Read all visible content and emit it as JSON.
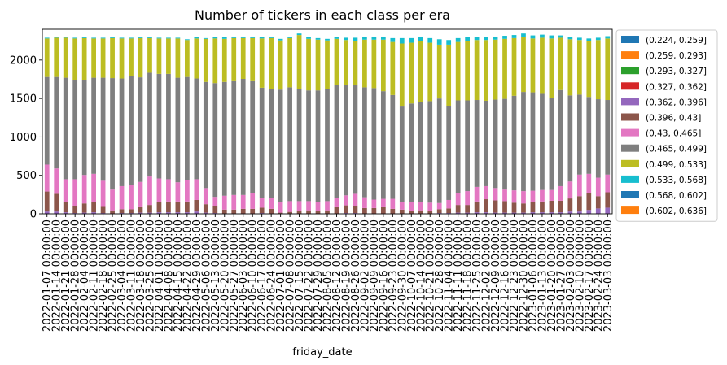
{
  "chart_data": {
    "type": "bar",
    "stacked": true,
    "title": "Number of tickers in each class per era",
    "xlabel": "friday_date",
    "ylabel": "",
    "ylim": [
      0,
      2400
    ],
    "yticks": [
      0,
      500,
      1000,
      1500,
      2000
    ],
    "grid": false,
    "legend_position": "outside-right",
    "categories": [
      "2022-01-07 00:00:00",
      "2022-01-14 00:00:00",
      "2022-01-21 00:00:00",
      "2022-01-28 00:00:00",
      "2022-02-04 00:00:00",
      "2022-02-11 00:00:00",
      "2022-02-18 00:00:00",
      "2022-02-25 00:00:00",
      "2022-03-04 00:00:00",
      "2022-03-11 00:00:00",
      "2022-03-18 00:00:00",
      "2022-03-25 00:00:00",
      "2022-04-01 00:00:00",
      "2022-04-08 00:00:00",
      "2022-04-15 00:00:00",
      "2022-04-22 00:00:00",
      "2022-04-29 00:00:00",
      "2022-05-06 00:00:00",
      "2022-05-13 00:00:00",
      "2022-05-20 00:00:00",
      "2022-05-27 00:00:00",
      "2022-06-03 00:00:00",
      "2022-06-10 00:00:00",
      "2022-06-17 00:00:00",
      "2022-06-24 00:00:00",
      "2022-07-01 00:00:00",
      "2022-07-08 00:00:00",
      "2022-07-15 00:00:00",
      "2022-07-22 00:00:00",
      "2022-07-29 00:00:00",
      "2022-08-05 00:00:00",
      "2022-08-12 00:00:00",
      "2022-08-19 00:00:00",
      "2022-08-26 00:00:00",
      "2022-09-02 00:00:00",
      "2022-09-09 00:00:00",
      "2022-09-16 00:00:00",
      "2022-09-23 00:00:00",
      "2022-09-30 00:00:00",
      "2022-10-07 00:00:00",
      "2022-10-14 00:00:00",
      "2022-10-21 00:00:00",
      "2022-10-28 00:00:00",
      "2022-11-04 00:00:00",
      "2022-11-11 00:00:00",
      "2022-11-18 00:00:00",
      "2022-11-25 00:00:00",
      "2022-12-02 00:00:00",
      "2022-12-09 00:00:00",
      "2022-12-16 00:00:00",
      "2022-12-23 00:00:00",
      "2022-12-30 00:00:00",
      "2023-01-06 00:00:00",
      "2023-01-13 00:00:00",
      "2023-01-20 00:00:00",
      "2023-01-27 00:00:00",
      "2023-02-03 00:00:00",
      "2023-02-10 00:00:00",
      "2023-02-17 00:00:00",
      "2023-02-24 00:00:00",
      "2023-03-03 00:00:00"
    ],
    "xtick_labels": [
      "2022-01-07 00:00:00",
      "2022-01-14 00:00:00",
      "2022-01-21 00:00:00",
      "2022-01-28 00:00:00",
      "2022-02-04 00:00:00",
      "2022-02-11 00:00:00",
      "2022-02-18 00:00:00",
      "2022-02-25 00:00:00",
      "2022-03-04 00:00:00",
      "2022-03-11 00:00:00",
      "2022-03-18 00:00:00",
      "2022-03-25 00:00:00",
      "2022-04-01 00:00:00",
      "2022-04-08 00:00:00",
      "2022-04-15 00:00:00",
      "2022-04-22 00:00:00",
      "2022-04-29 00:00:00",
      "2022-05-06 00:00:00",
      "2022-05-13 00:00:00",
      "2022-05-20 00:00:00",
      "2022-05-27 00:00:00",
      "2022-06-03 00:00:00",
      "2022-06-10 00:00:00",
      "2022-06-17 00:00:00",
      "2022-06-24 00:00:00",
      "2022-07-01 00:00:00",
      "2022-07-08 00:00:00",
      "2022-07-15 00:00:00",
      "2022-07-22 00:00:00",
      "2022-07-29 00:00:00",
      "2022-08-05 00:00:00",
      "2022-08-12 00:00:00",
      "2022-08-19 00:00:00",
      "2022-08-26 00:00:00",
      "2022-09-02 00:00:00",
      "2022-09-09 00:00:00",
      "2022-09-16 00:00:00",
      "2022-09-23 00:00:00",
      "2022-09-30 00:00:00",
      "2022-10-07 00:00:00",
      "2022-10-14 00:00:00",
      "2022-10-21 00:00:00",
      "2022-10-28 00:00:00",
      "2022-11-04 00:00:00",
      "2022-11-11 00:00:00",
      "2022-11-18 00:00:00",
      "2022-11-25 00:00:00",
      "2022-12-02 00:00:00",
      "2022-12-09 00:00:00",
      "2022-12-16 00:00:00",
      "2022-12-23 00:00:00",
      "2022-12-30 00:00:00",
      "2023-01-06 00:00:00",
      "2023-01-13 00:00:00",
      "2023-01-20 00:00:00",
      "2023-01-27 00:00:00",
      "2023-02-03 00:00:00",
      "2023-02-10 00:00:00",
      "2023-02-17 00:00:00",
      "2023-02-24 00:00:00",
      "2023-03-03 00:00:00"
    ],
    "series": [
      {
        "name": "(0.224, 0.259]",
        "color": "#1f77b4",
        "values": [
          0,
          0,
          0,
          0,
          0,
          0,
          0,
          0,
          0,
          0,
          0,
          0,
          0,
          0,
          0,
          0,
          0,
          0,
          0,
          0,
          0,
          0,
          0,
          0,
          0,
          0,
          0,
          0,
          0,
          0,
          0,
          0,
          0,
          0,
          0,
          0,
          0,
          0,
          0,
          0,
          0,
          0,
          0,
          0,
          0,
          0,
          0,
          0,
          0,
          0,
          0,
          0,
          0,
          0,
          0,
          0,
          0,
          0,
          0,
          0,
          0
        ]
      },
      {
        "name": "(0.259, 0.293]",
        "color": "#ff7f0e",
        "values": [
          0,
          0,
          0,
          0,
          0,
          0,
          0,
          0,
          0,
          0,
          0,
          0,
          0,
          0,
          0,
          0,
          0,
          0,
          0,
          0,
          0,
          0,
          0,
          0,
          0,
          0,
          0,
          0,
          0,
          0,
          0,
          0,
          0,
          0,
          0,
          0,
          0,
          0,
          0,
          0,
          0,
          0,
          0,
          0,
          0,
          0,
          0,
          0,
          0,
          0,
          0,
          0,
          0,
          0,
          0,
          0,
          0,
          0,
          0,
          0,
          0
        ]
      },
      {
        "name": "(0.293, 0.327]",
        "color": "#2ca02c",
        "values": [
          0,
          0,
          0,
          0,
          0,
          0,
          0,
          0,
          0,
          0,
          0,
          0,
          0,
          0,
          0,
          0,
          0,
          0,
          0,
          0,
          0,
          0,
          0,
          0,
          0,
          0,
          0,
          0,
          0,
          0,
          0,
          0,
          0,
          0,
          0,
          0,
          0,
          0,
          0,
          0,
          0,
          0,
          0,
          0,
          0,
          0,
          0,
          0,
          0,
          0,
          0,
          0,
          0,
          0,
          0,
          0,
          0,
          0,
          0,
          0,
          0
        ]
      },
      {
        "name": "(0.327, 0.362]",
        "color": "#d62728",
        "values": [
          0,
          0,
          0,
          0,
          0,
          0,
          0,
          0,
          0,
          0,
          0,
          0,
          0,
          0,
          0,
          0,
          0,
          0,
          0,
          0,
          0,
          0,
          0,
          0,
          0,
          0,
          0,
          0,
          0,
          0,
          0,
          0,
          0,
          0,
          0,
          0,
          0,
          0,
          0,
          0,
          0,
          0,
          0,
          0,
          0,
          0,
          0,
          0,
          0,
          0,
          0,
          0,
          0,
          0,
          0,
          0,
          0,
          0,
          0,
          0,
          0
        ]
      },
      {
        "name": "(0.362, 0.396]",
        "color": "#9467bd",
        "values": [
          30,
          30,
          20,
          10,
          15,
          20,
          10,
          5,
          10,
          10,
          15,
          15,
          20,
          20,
          20,
          20,
          30,
          15,
          10,
          5,
          5,
          5,
          5,
          10,
          5,
          5,
          5,
          5,
          5,
          5,
          5,
          5,
          10,
          10,
          5,
          5,
          5,
          5,
          5,
          5,
          5,
          5,
          10,
          10,
          15,
          15,
          20,
          20,
          15,
          15,
          15,
          15,
          20,
          20,
          20,
          20,
          30,
          30,
          50,
          70,
          80
        ]
      },
      {
        "name": "(0.396, 0.43]",
        "color": "#8c564b",
        "values": [
          260,
          230,
          130,
          90,
          120,
          130,
          80,
          40,
          50,
          50,
          70,
          100,
          130,
          140,
          140,
          140,
          150,
          110,
          90,
          50,
          50,
          60,
          60,
          70,
          60,
          10,
          20,
          30,
          40,
          30,
          40,
          80,
          100,
          90,
          70,
          70,
          80,
          60,
          50,
          30,
          40,
          30,
          50,
          60,
          100,
          100,
          140,
          170,
          160,
          150,
          130,
          120,
          130,
          140,
          150,
          150,
          170,
          200,
          220,
          160,
          200
        ]
      },
      {
        "name": "(0.43, 0.465]",
        "color": "#e377c2",
        "values": [
          350,
          330,
          300,
          350,
          370,
          370,
          340,
          270,
          300,
          310,
          330,
          370,
          310,
          290,
          250,
          280,
          270,
          210,
          120,
          180,
          190,
          180,
          200,
          130,
          140,
          140,
          140,
          130,
          120,
          120,
          120,
          120,
          130,
          160,
          140,
          110,
          110,
          130,
          100,
          120,
          110,
          110,
          80,
          110,
          150,
          180,
          190,
          170,
          160,
          150,
          160,
          160,
          150,
          150,
          140,
          190,
          220,
          280,
          250,
          240,
          230
        ]
      },
      {
        "name": "(0.465, 0.499]",
        "color": "#7f7f7f",
        "values": [
          1140,
          1190,
          1320,
          1290,
          1230,
          1250,
          1340,
          1450,
          1400,
          1420,
          1360,
          1350,
          1360,
          1370,
          1360,
          1340,
          1310,
          1380,
          1480,
          1480,
          1480,
          1510,
          1460,
          1430,
          1420,
          1460,
          1480,
          1460,
          1440,
          1450,
          1460,
          1470,
          1440,
          1420,
          1430,
          1450,
          1400,
          1350,
          1240,
          1280,
          1300,
          1320,
          1360,
          1220,
          1210,
          1180,
          1130,
          1110,
          1150,
          1180,
          1230,
          1290,
          1280,
          1250,
          1200,
          1250,
          1120,
          1040,
          1000,
          1020,
          970
        ]
      },
      {
        "name": "(0.499, 0.533]",
        "color": "#bcbd22",
        "values": [
          500,
          510,
          520,
          540,
          550,
          510,
          510,
          520,
          520,
          490,
          510,
          450,
          460,
          460,
          510,
          480,
          520,
          560,
          580,
          560,
          560,
          530,
          560,
          640,
          660,
          640,
          640,
          700,
          670,
          660,
          630,
          600,
          580,
          570,
          620,
          630,
          670,
          690,
          820,
          790,
          790,
          760,
          700,
          800,
          760,
          770,
          780,
          790,
          780,
          780,
          750,
          720,
          700,
          730,
          770,
          680,
          730,
          710,
          730,
          770,
          800
        ]
      },
      {
        "name": "(0.533, 0.568]",
        "color": "#17becf",
        "values": [
          10,
          10,
          10,
          10,
          15,
          10,
          10,
          10,
          10,
          10,
          10,
          10,
          10,
          10,
          10,
          10,
          20,
          10,
          15,
          20,
          20,
          20,
          20,
          20,
          20,
          20,
          20,
          20,
          20,
          20,
          20,
          20,
          30,
          40,
          40,
          40,
          40,
          50,
          70,
          60,
          60,
          60,
          70,
          60,
          50,
          50,
          40,
          40,
          40,
          40,
          40,
          40,
          40,
          40,
          40,
          30,
          30,
          30,
          30,
          30,
          30
        ]
      },
      {
        "name": "(0.568, 0.602]",
        "color": "#1f77b4",
        "values": [
          0,
          0,
          0,
          0,
          0,
          0,
          0,
          0,
          0,
          0,
          0,
          0,
          0,
          0,
          0,
          0,
          0,
          0,
          0,
          0,
          0,
          0,
          0,
          0,
          0,
          0,
          0,
          0,
          0,
          0,
          0,
          0,
          0,
          0,
          0,
          0,
          0,
          0,
          0,
          0,
          0,
          0,
          0,
          0,
          0,
          0,
          0,
          0,
          0,
          0,
          0,
          0,
          0,
          0,
          0,
          0,
          0,
          0,
          0,
          0,
          0
        ]
      },
      {
        "name": "(0.602, 0.636]",
        "color": "#ff7f0e",
        "values": [
          0,
          0,
          0,
          0,
          0,
          0,
          0,
          0,
          0,
          0,
          0,
          0,
          0,
          0,
          0,
          0,
          0,
          0,
          0,
          0,
          0,
          0,
          0,
          0,
          0,
          0,
          0,
          0,
          0,
          0,
          0,
          0,
          0,
          0,
          0,
          0,
          0,
          0,
          0,
          0,
          0,
          0,
          0,
          0,
          0,
          0,
          0,
          0,
          0,
          0,
          0,
          0,
          0,
          0,
          0,
          0,
          0,
          0,
          0,
          0,
          0
        ]
      }
    ]
  }
}
